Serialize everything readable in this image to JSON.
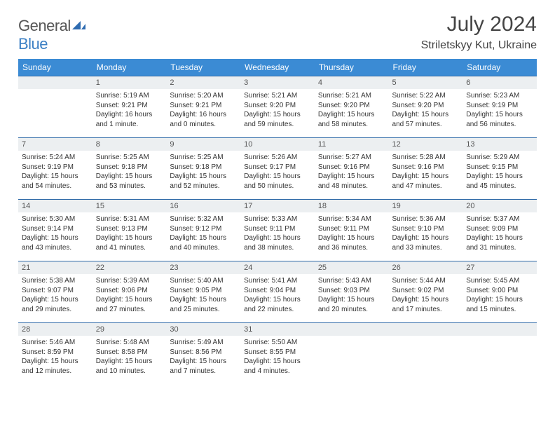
{
  "logo": {
    "text1": "General",
    "text2": "Blue"
  },
  "title": "July 2024",
  "location": "Striletskyy Kut, Ukraine",
  "columns": [
    "Sunday",
    "Monday",
    "Tuesday",
    "Wednesday",
    "Thursday",
    "Friday",
    "Saturday"
  ],
  "colors": {
    "header_bg": "#3b8bd4",
    "header_text": "#ffffff",
    "row_border": "#2f6aa8",
    "daynum_bg": "#eceff1",
    "logo_blue": "#3b7fc4",
    "text": "#333333"
  },
  "first_weekday_index": 1,
  "days": [
    {
      "n": 1,
      "sunrise": "5:19 AM",
      "sunset": "9:21 PM",
      "daylight": "16 hours and 1 minute."
    },
    {
      "n": 2,
      "sunrise": "5:20 AM",
      "sunset": "9:21 PM",
      "daylight": "16 hours and 0 minutes."
    },
    {
      "n": 3,
      "sunrise": "5:21 AM",
      "sunset": "9:20 PM",
      "daylight": "15 hours and 59 minutes."
    },
    {
      "n": 4,
      "sunrise": "5:21 AM",
      "sunset": "9:20 PM",
      "daylight": "15 hours and 58 minutes."
    },
    {
      "n": 5,
      "sunrise": "5:22 AM",
      "sunset": "9:20 PM",
      "daylight": "15 hours and 57 minutes."
    },
    {
      "n": 6,
      "sunrise": "5:23 AM",
      "sunset": "9:19 PM",
      "daylight": "15 hours and 56 minutes."
    },
    {
      "n": 7,
      "sunrise": "5:24 AM",
      "sunset": "9:19 PM",
      "daylight": "15 hours and 54 minutes."
    },
    {
      "n": 8,
      "sunrise": "5:25 AM",
      "sunset": "9:18 PM",
      "daylight": "15 hours and 53 minutes."
    },
    {
      "n": 9,
      "sunrise": "5:25 AM",
      "sunset": "9:18 PM",
      "daylight": "15 hours and 52 minutes."
    },
    {
      "n": 10,
      "sunrise": "5:26 AM",
      "sunset": "9:17 PM",
      "daylight": "15 hours and 50 minutes."
    },
    {
      "n": 11,
      "sunrise": "5:27 AM",
      "sunset": "9:16 PM",
      "daylight": "15 hours and 48 minutes."
    },
    {
      "n": 12,
      "sunrise": "5:28 AM",
      "sunset": "9:16 PM",
      "daylight": "15 hours and 47 minutes."
    },
    {
      "n": 13,
      "sunrise": "5:29 AM",
      "sunset": "9:15 PM",
      "daylight": "15 hours and 45 minutes."
    },
    {
      "n": 14,
      "sunrise": "5:30 AM",
      "sunset": "9:14 PM",
      "daylight": "15 hours and 43 minutes."
    },
    {
      "n": 15,
      "sunrise": "5:31 AM",
      "sunset": "9:13 PM",
      "daylight": "15 hours and 41 minutes."
    },
    {
      "n": 16,
      "sunrise": "5:32 AM",
      "sunset": "9:12 PM",
      "daylight": "15 hours and 40 minutes."
    },
    {
      "n": 17,
      "sunrise": "5:33 AM",
      "sunset": "9:11 PM",
      "daylight": "15 hours and 38 minutes."
    },
    {
      "n": 18,
      "sunrise": "5:34 AM",
      "sunset": "9:11 PM",
      "daylight": "15 hours and 36 minutes."
    },
    {
      "n": 19,
      "sunrise": "5:36 AM",
      "sunset": "9:10 PM",
      "daylight": "15 hours and 33 minutes."
    },
    {
      "n": 20,
      "sunrise": "5:37 AM",
      "sunset": "9:09 PM",
      "daylight": "15 hours and 31 minutes."
    },
    {
      "n": 21,
      "sunrise": "5:38 AM",
      "sunset": "9:07 PM",
      "daylight": "15 hours and 29 minutes."
    },
    {
      "n": 22,
      "sunrise": "5:39 AM",
      "sunset": "9:06 PM",
      "daylight": "15 hours and 27 minutes."
    },
    {
      "n": 23,
      "sunrise": "5:40 AM",
      "sunset": "9:05 PM",
      "daylight": "15 hours and 25 minutes."
    },
    {
      "n": 24,
      "sunrise": "5:41 AM",
      "sunset": "9:04 PM",
      "daylight": "15 hours and 22 minutes."
    },
    {
      "n": 25,
      "sunrise": "5:43 AM",
      "sunset": "9:03 PM",
      "daylight": "15 hours and 20 minutes."
    },
    {
      "n": 26,
      "sunrise": "5:44 AM",
      "sunset": "9:02 PM",
      "daylight": "15 hours and 17 minutes."
    },
    {
      "n": 27,
      "sunrise": "5:45 AM",
      "sunset": "9:00 PM",
      "daylight": "15 hours and 15 minutes."
    },
    {
      "n": 28,
      "sunrise": "5:46 AM",
      "sunset": "8:59 PM",
      "daylight": "15 hours and 12 minutes."
    },
    {
      "n": 29,
      "sunrise": "5:48 AM",
      "sunset": "8:58 PM",
      "daylight": "15 hours and 10 minutes."
    },
    {
      "n": 30,
      "sunrise": "5:49 AM",
      "sunset": "8:56 PM",
      "daylight": "15 hours and 7 minutes."
    },
    {
      "n": 31,
      "sunrise": "5:50 AM",
      "sunset": "8:55 PM",
      "daylight": "15 hours and 4 minutes."
    }
  ],
  "labels": {
    "sunrise": "Sunrise:",
    "sunset": "Sunset:",
    "daylight": "Daylight:"
  }
}
